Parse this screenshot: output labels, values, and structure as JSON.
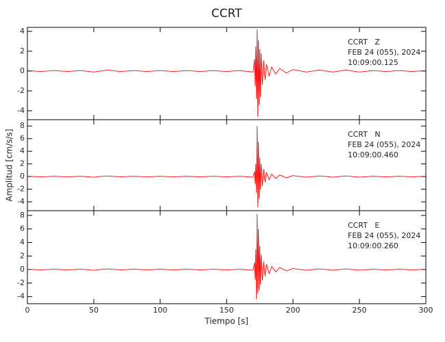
{
  "chart_data": [
    {
      "type": "line",
      "title": "CCRT",
      "color": "#ff0000",
      "annotations": [
        "CCRT   Z",
        "FEB 24 (055), 2024",
        "10:09:00.125"
      ],
      "x": [
        0,
        10,
        20,
        30,
        40,
        50,
        60,
        70,
        80,
        90,
        100,
        110,
        120,
        130,
        140,
        150,
        160,
        170,
        171,
        171.5,
        172,
        172.5,
        173,
        173.5,
        174,
        174.5,
        175,
        175.5,
        176,
        177,
        178,
        179,
        180,
        182,
        184,
        187,
        190,
        195,
        200,
        210,
        220,
        230,
        240,
        250,
        260,
        270,
        280,
        290,
        300
      ],
      "values": [
        0.05,
        -0.05,
        0.05,
        -0.05,
        0.05,
        -0.1,
        0.1,
        -0.05,
        0.05,
        -0.05,
        0.05,
        -0.05,
        0.05,
        -0.05,
        0.05,
        -0.05,
        0.05,
        -0.1,
        1.2,
        -1.5,
        2.5,
        -2.8,
        4.2,
        -4.6,
        3.1,
        -3.4,
        2.2,
        -2.6,
        1.8,
        -1.4,
        1.1,
        -0.9,
        0.7,
        -0.5,
        0.4,
        -0.3,
        0.25,
        -0.2,
        0.15,
        -0.1,
        0.1,
        -0.1,
        0.1,
        -0.1,
        0.05,
        -0.05,
        0.05,
        -0.05,
        0.05
      ],
      "xlim": [
        0,
        300
      ],
      "xticks": [
        0,
        50,
        100,
        150,
        200,
        250,
        300
      ],
      "ylim": [
        -4.9,
        4.4
      ],
      "yticks": [
        -4,
        -2,
        0,
        2,
        4
      ]
    },
    {
      "type": "line",
      "ylabel": "Amplitud [cm/s/s]",
      "color": "#ff0000",
      "annotations": [
        "CCRT   N",
        "FEB 24 (055), 2024",
        "10:09:00.460"
      ],
      "x": [
        0,
        10,
        20,
        30,
        40,
        50,
        60,
        70,
        80,
        90,
        100,
        110,
        120,
        130,
        140,
        150,
        160,
        170,
        171,
        171.5,
        172,
        172.5,
        173,
        173.5,
        174,
        174.5,
        175,
        175.5,
        176,
        177,
        178,
        179,
        180,
        182,
        184,
        187,
        190,
        195,
        200,
        210,
        220,
        230,
        240,
        250,
        260,
        270,
        280,
        290,
        300
      ],
      "values": [
        0.05,
        -0.05,
        0.05,
        -0.05,
        0.05,
        -0.1,
        0.1,
        -0.05,
        0.05,
        -0.05,
        0.05,
        -0.05,
        0.05,
        -0.05,
        0.05,
        -0.05,
        0.05,
        -0.1,
        0.8,
        -1.2,
        2.0,
        -2.5,
        8.0,
        -4.8,
        5.5,
        -3.5,
        3.0,
        -2.0,
        2.0,
        -1.5,
        1.2,
        -0.9,
        0.7,
        -0.5,
        0.4,
        -0.3,
        0.25,
        -0.2,
        0.15,
        -0.1,
        0.1,
        -0.1,
        0.1,
        -0.1,
        0.05,
        -0.05,
        0.05,
        -0.05,
        0.05
      ],
      "xlim": [
        0,
        300
      ],
      "xticks": [
        0,
        50,
        100,
        150,
        200,
        250,
        300
      ],
      "ylim": [
        -5.4,
        9
      ],
      "yticks": [
        -4,
        -2,
        0,
        2,
        4,
        6,
        8
      ]
    },
    {
      "type": "line",
      "xlabel": "Tiempo [s]",
      "color": "#ff0000",
      "annotations": [
        "CCRT   E",
        "FEB 24 (055), 2024",
        "10:09:00.260"
      ],
      "x": [
        0,
        10,
        20,
        30,
        40,
        50,
        60,
        70,
        80,
        90,
        100,
        110,
        120,
        130,
        140,
        150,
        160,
        170,
        171,
        171.5,
        172,
        172.5,
        173,
        173.5,
        174,
        174.5,
        175,
        175.5,
        176,
        177,
        178,
        179,
        180,
        182,
        184,
        187,
        190,
        195,
        200,
        210,
        220,
        230,
        240,
        250,
        260,
        270,
        280,
        290,
        300
      ],
      "values": [
        0.05,
        -0.05,
        0.05,
        -0.05,
        0.05,
        -0.1,
        0.1,
        -0.05,
        0.05,
        -0.05,
        0.05,
        -0.05,
        0.05,
        -0.05,
        0.05,
        -0.05,
        0.05,
        -0.1,
        1.0,
        -1.5,
        3.0,
        -4.4,
        8.2,
        -3.5,
        6.0,
        -3.0,
        3.5,
        -2.2,
        2.2,
        -1.6,
        1.2,
        -1.0,
        0.8,
        -0.6,
        0.45,
        -0.35,
        0.3,
        -0.2,
        0.15,
        -0.1,
        0.1,
        -0.1,
        0.1,
        -0.1,
        0.05,
        -0.05,
        0.05,
        -0.05,
        0.05
      ],
      "xlim": [
        0,
        300
      ],
      "xticks": [
        0,
        50,
        100,
        150,
        200,
        250,
        300
      ],
      "ylim": [
        -5.05,
        8.7
      ],
      "yticks": [
        -4,
        -2,
        0,
        2,
        4,
        6,
        8
      ]
    }
  ]
}
